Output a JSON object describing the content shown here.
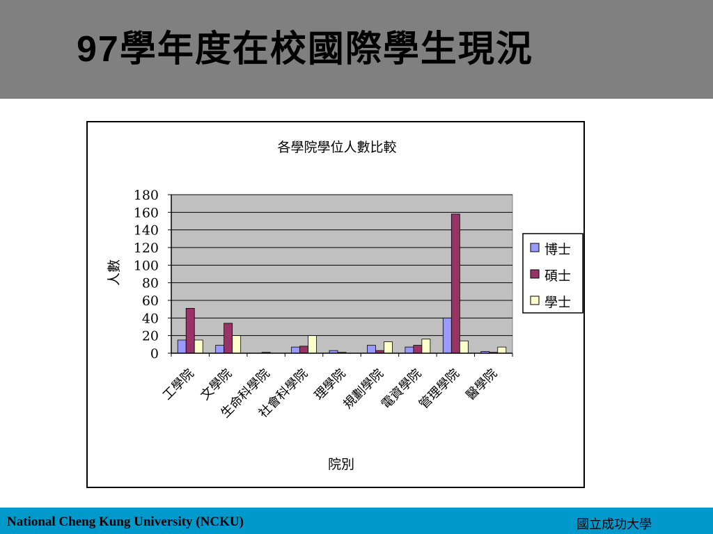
{
  "slide": {
    "title_num": "97",
    "title_text": "學年度在校國際學生現況"
  },
  "footer": {
    "left": "National Cheng Kung University (NCKU)",
    "right": "國立成功大學"
  },
  "chart_data": {
    "type": "bar",
    "title": "各學院學位人數比較",
    "xlabel": "院別",
    "ylabel": "人數",
    "ylim": [
      0,
      180
    ],
    "yticks": [
      0,
      20,
      40,
      60,
      80,
      100,
      120,
      140,
      160,
      180
    ],
    "categories": [
      "工學院",
      "文學院",
      "生命科學院",
      "社會科學院",
      "理學院",
      "規劃學院",
      "電資學院",
      "管理學院",
      "醫學院"
    ],
    "series": [
      {
        "name": "博士",
        "color": "#9999ff",
        "values": [
          15,
          9,
          0,
          7,
          3,
          9,
          7,
          40,
          2
        ]
      },
      {
        "name": "碩士",
        "color": "#993366",
        "values": [
          51,
          34,
          1,
          8,
          1,
          3,
          9,
          158,
          1
        ]
      },
      {
        "name": "學士",
        "color": "#ffffcc",
        "values": [
          15,
          20,
          0,
          20,
          0,
          13,
          16,
          14,
          7
        ]
      }
    ],
    "plot_background": "#c0c0c0",
    "grid": true,
    "legend_position": "right"
  }
}
